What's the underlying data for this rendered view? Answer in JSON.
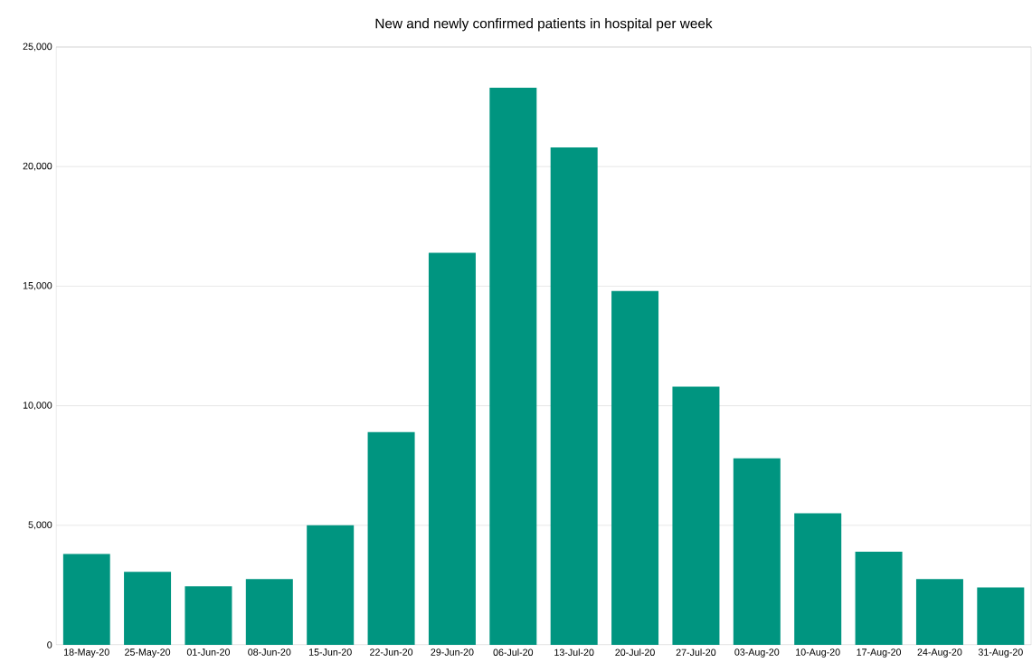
{
  "chart_data": {
    "type": "bar",
    "title": "New and newly confirmed patients in hospital per week",
    "categories": [
      "18-May-20",
      "25-May-20",
      "01-Jun-20",
      "08-Jun-20",
      "15-Jun-20",
      "22-Jun-20",
      "29-Jun-20",
      "06-Jul-20",
      "13-Jul-20",
      "20-Jul-20",
      "27-Jul-20",
      "03-Aug-20",
      "10-Aug-20",
      "17-Aug-20",
      "24-Aug-20",
      "31-Aug-20"
    ],
    "values": [
      3800,
      3050,
      2450,
      2750,
      5000,
      8900,
      16400,
      23300,
      20800,
      14800,
      10800,
      7800,
      5500,
      3900,
      2750,
      2400
    ],
    "color": "#009580",
    "ylim": [
      0,
      25000
    ],
    "yticks": [
      0,
      {
        "value": 5000,
        "label": "5,000"
      },
      {
        "value": 10000,
        "label": "10,000"
      },
      {
        "value": 15000,
        "label": "15,000"
      },
      {
        "value": 20000,
        "label": "20,000"
      },
      {
        "value": 25000,
        "label": "25,000"
      }
    ],
    "grid": "y"
  }
}
